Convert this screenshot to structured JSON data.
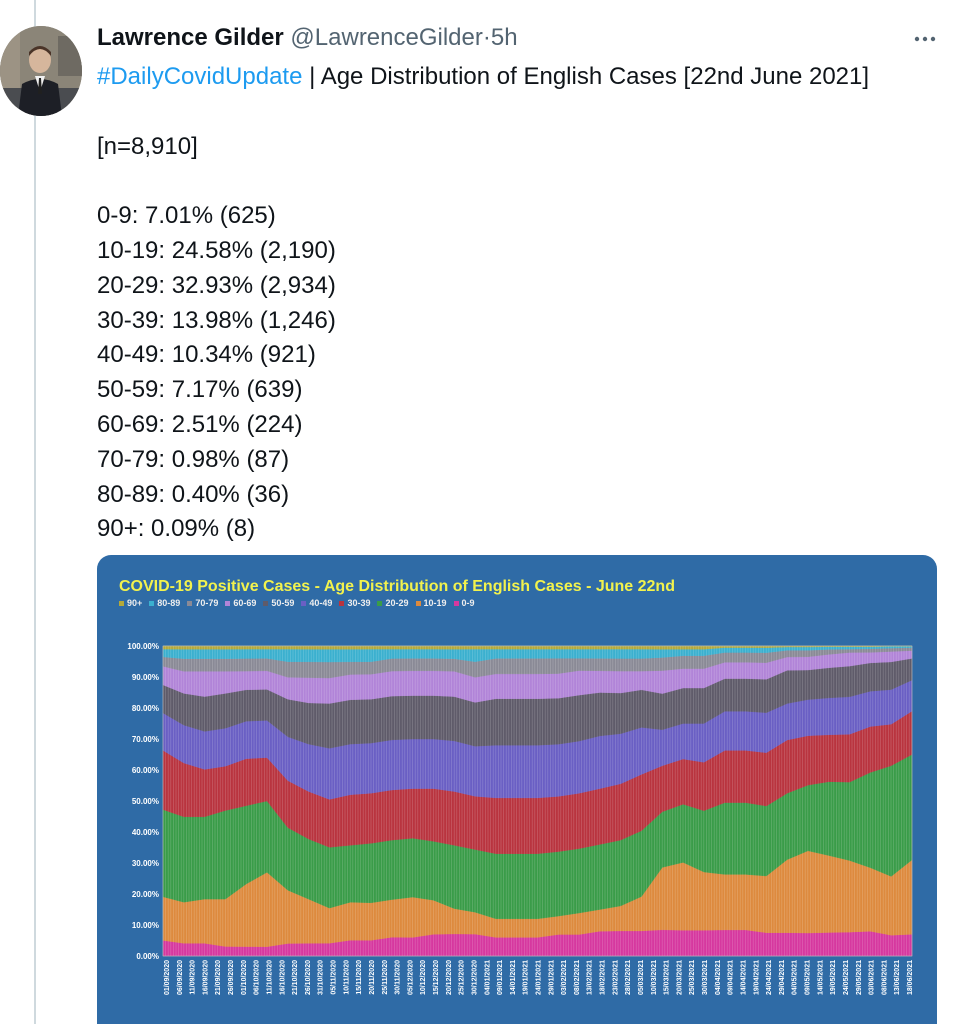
{
  "tweet": {
    "author_name": "Lawrence Gilder",
    "handle": "@LawrenceGilder",
    "separator": "·",
    "time": "5h",
    "more_icon": "more-horizontal-icon",
    "hashtag": "#DailyCovidUpdate",
    "headline": " | Age Distribution of English Cases [22nd June 2021]",
    "lines": [
      "",
      "[n=8,910]",
      "",
      "0-9: 7.01% (625)",
      "10-19: 24.58% (2,190)",
      "20-29: 32.93% (2,934)",
      "30-39: 13.98% (1,246)",
      "40-49: 10.34% (921)",
      "50-59: 7.17% (639)",
      "60-69: 2.51% (224)",
      "70-79: 0.98% (87)",
      "80-89: 0.40% (36)",
      "90+: 0.09% (8)"
    ]
  },
  "chart_data": {
    "type": "area",
    "title": "COVID-19 Positive Cases - Age Distribution of English Cases - June 22nd",
    "legend_position": "top-left",
    "grid": true,
    "stacked": true,
    "y_tick_labels": [
      "0.00%",
      "10.00%",
      "20.00%",
      "30.00%",
      "40.00%",
      "50.00%",
      "60.00%",
      "70.00%",
      "80.00%",
      "90.00%",
      "100.00%"
    ],
    "ylim": [
      0,
      100
    ],
    "x_tick_labels": [
      "01/09/2020",
      "06/09/2020",
      "11/09/2020",
      "16/09/2020",
      "21/09/2020",
      "26/09/2020",
      "01/10/2020",
      "06/10/2020",
      "11/10/2020",
      "16/10/2020",
      "21/10/2020",
      "26/10/2020",
      "31/10/2020",
      "05/11/2020",
      "10/11/2020",
      "15/11/2020",
      "20/11/2020",
      "25/11/2020",
      "30/11/2020",
      "05/12/2020",
      "10/12/2020",
      "15/12/2020",
      "20/12/2020",
      "25/12/2020",
      "30/12/2020",
      "04/01/2021",
      "09/01/2021",
      "14/01/2021",
      "19/01/2021",
      "24/01/2021",
      "29/01/2021",
      "03/02/2021",
      "08/02/2021",
      "13/02/2021",
      "18/02/2021",
      "23/02/2021",
      "28/02/2021",
      "05/03/2021",
      "10/03/2021",
      "15/03/2021",
      "20/03/2021",
      "25/03/2021",
      "30/03/2021",
      "04/04/2021",
      "09/04/2021",
      "14/04/2021",
      "19/04/2021",
      "24/04/2021",
      "29/04/2021",
      "04/05/2021",
      "09/05/2021",
      "14/05/2021",
      "19/05/2021",
      "24/05/2021",
      "29/05/2021",
      "03/06/2021",
      "08/06/2021",
      "13/06/2021",
      "18/06/2021"
    ],
    "series": [
      {
        "name": "0-9",
        "color": "#d6389f",
        "values": [
          5,
          4,
          4,
          3,
          3,
          3,
          4,
          4,
          4,
          5,
          5,
          6,
          6,
          7,
          7,
          7,
          6,
          6,
          6,
          7,
          7,
          8,
          8,
          8,
          8,
          8,
          8,
          8,
          8,
          7,
          7,
          7,
          7,
          7,
          7,
          6,
          7
        ]
      },
      {
        "name": "10-19",
        "color": "#dd8a3e",
        "values": [
          14,
          13,
          14,
          15,
          20,
          24,
          17,
          14,
          11,
          12,
          12,
          12,
          13,
          11,
          8,
          7,
          6,
          6,
          6,
          6,
          7,
          7,
          8,
          11,
          19,
          21,
          18,
          17,
          17,
          17,
          22,
          25,
          23,
          21,
          18,
          17,
          24
        ]
      },
      {
        "name": "20-29",
        "color": "#3a9c49",
        "values": [
          28,
          27,
          26,
          28,
          25,
          23,
          20,
          19,
          19,
          18,
          19,
          19,
          19,
          19,
          20,
          20,
          21,
          21,
          21,
          21,
          21,
          21,
          21,
          21,
          17,
          18,
          19,
          22,
          22,
          21,
          20,
          20,
          22,
          23,
          27,
          32,
          34
        ]
      },
      {
        "name": "30-39",
        "color": "#b9343f",
        "values": [
          19,
          17,
          15,
          14,
          15,
          14,
          15,
          15,
          15,
          16,
          16,
          16,
          16,
          17,
          17,
          17,
          18,
          18,
          18,
          18,
          18,
          18,
          18,
          18,
          14,
          14,
          15,
          16,
          16,
          16,
          16,
          15,
          14,
          14,
          13,
          12,
          14
        ]
      },
      {
        "name": "40-49",
        "color": "#6a5fc4",
        "values": [
          12,
          12,
          12,
          12,
          12,
          12,
          14,
          15,
          16,
          16,
          16,
          16,
          16,
          16,
          16,
          16,
          17,
          17,
          17,
          17,
          17,
          17,
          16,
          15,
          11,
          11,
          12,
          12,
          12,
          12,
          11,
          11,
          11,
          11,
          10,
          10,
          10
        ]
      },
      {
        "name": "50-59",
        "color": "#5f5b6a",
        "values": [
          9,
          10,
          11,
          11,
          10,
          10,
          12,
          13,
          14,
          14,
          14,
          14,
          14,
          14,
          14,
          14,
          15,
          15,
          15,
          15,
          15,
          14,
          13,
          12,
          11,
          11,
          11,
          10,
          10,
          10,
          10,
          9,
          9,
          9,
          8,
          8,
          7
        ]
      },
      {
        "name": "60-69",
        "color": "#b184d8",
        "values": [
          6,
          7,
          8,
          7,
          6,
          6,
          7,
          8,
          8,
          8,
          8,
          8,
          8,
          8,
          8,
          8,
          8,
          8,
          8,
          8,
          8,
          7,
          7,
          6,
          7,
          6,
          6,
          5,
          5,
          5,
          4,
          4,
          4,
          4,
          3,
          3,
          2.5
        ]
      },
      {
        "name": "70-79",
        "color": "#8a8a96",
        "values": [
          3,
          4,
          4,
          4,
          4,
          4,
          5,
          5,
          5,
          4,
          4,
          4,
          4,
          4,
          4,
          5,
          5,
          5,
          5,
          5,
          4,
          4,
          4,
          4,
          4,
          4,
          4,
          3,
          3,
          3,
          2,
          2,
          1.5,
          1,
          1,
          1,
          1
        ]
      },
      {
        "name": "80-89",
        "color": "#3bb0cf",
        "values": [
          2.5,
          3,
          3,
          3,
          3,
          3,
          4,
          4,
          4,
          4,
          4,
          3,
          3,
          3,
          3,
          4,
          3,
          3,
          3,
          3,
          3,
          3,
          3,
          3,
          2.5,
          2,
          2,
          1.5,
          1.5,
          1.5,
          1,
          1,
          0.8,
          0.7,
          0.6,
          0.5,
          0.4
        ]
      },
      {
        "name": "90+",
        "color": "#b4a93a",
        "values": [
          1,
          1,
          1,
          1,
          1,
          1,
          1,
          1,
          1,
          1,
          1,
          1,
          1,
          1,
          1,
          1,
          1,
          1,
          1,
          1,
          1,
          1,
          1,
          1,
          1,
          1,
          1,
          0.5,
          0.5,
          0.5,
          0.3,
          0.3,
          0.2,
          0.2,
          0.2,
          0.1,
          0.1
        ]
      }
    ]
  }
}
